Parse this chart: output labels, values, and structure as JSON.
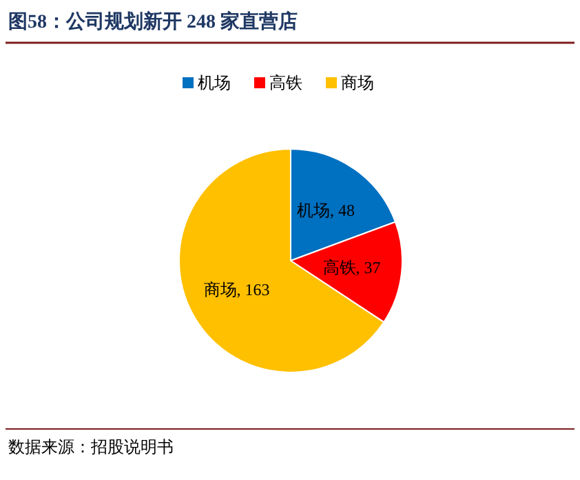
{
  "chart_data": {
    "type": "pie",
    "title": "图58：公司规划新开 248 家直营店",
    "categories": [
      "机场",
      "高铁",
      "商场"
    ],
    "values": [
      48,
      37,
      163
    ],
    "colors": [
      "#0070c0",
      "#ff0000",
      "#ffc000"
    ],
    "legend": "top",
    "value_labels": [
      "机场, 48",
      "高铁, 37",
      "商场, 163"
    ],
    "annotations": [
      "数据来源：招股说明书"
    ]
  }
}
